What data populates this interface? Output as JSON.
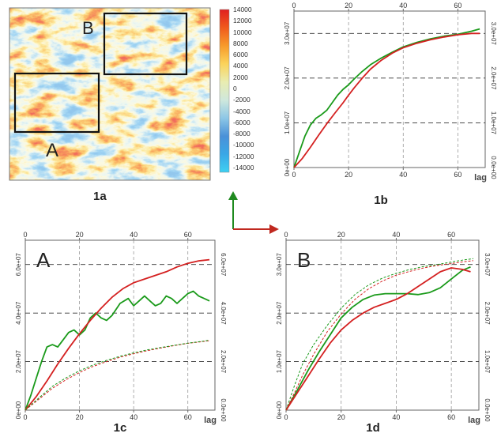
{
  "map": {
    "caption": "1a",
    "label_a": "A",
    "label_b": "B",
    "colorbar_ticks": [
      "14000",
      "12000",
      "10000",
      "8000",
      "6000",
      "4000",
      "2000",
      "0",
      "-2000",
      "-4000",
      "-6000",
      "-8000",
      "-10000",
      "-12000",
      "-14000"
    ],
    "colorbar_colors": [
      "#e02020",
      "#f05a1c",
      "#f79a2a",
      "#fbd35a",
      "#e9ecb0",
      "#cfe8dc",
      "#8dc7e6",
      "#4a91d8",
      "#39a7e6",
      "#3fd0f2"
    ]
  },
  "arrows": {
    "up_color": "#1f8a1f",
    "right_color": "#c0281f"
  },
  "chart_data": [
    {
      "id": "1b",
      "type": "line",
      "caption": "1b",
      "corner_label": "",
      "xlabel": "lag",
      "x_ticks": [
        "0",
        "20",
        "40",
        "60"
      ],
      "top_ticks": [
        "0",
        "20",
        "40",
        "60"
      ],
      "left_ticks": [
        "0e+00",
        "1.0e+07",
        "2.0e+07",
        "3.0e+07"
      ],
      "right_ticks": [
        "0.0e+00",
        "1.0e+07",
        "2.0e+07",
        "3.0e+07"
      ],
      "xlim": [
        0,
        70
      ],
      "ylim": [
        0,
        3.5
      ],
      "colors": {
        "green": "#1a9a1a",
        "red": "#d42020"
      },
      "series": [
        {
          "color": "green",
          "style": "solid",
          "x": [
            0,
            2,
            4,
            6,
            8,
            10,
            12,
            14,
            16,
            18,
            20,
            22,
            25,
            28,
            32,
            36,
            40,
            45,
            50,
            55,
            60,
            65,
            68
          ],
          "y": [
            0,
            0.35,
            0.7,
            0.95,
            1.1,
            1.18,
            1.28,
            1.45,
            1.62,
            1.75,
            1.85,
            1.98,
            2.15,
            2.3,
            2.45,
            2.58,
            2.7,
            2.8,
            2.88,
            2.94,
            2.98,
            3.05,
            3.1
          ]
        },
        {
          "color": "red",
          "style": "solid",
          "x": [
            0,
            3,
            6,
            9,
            12,
            15,
            18,
            20,
            22,
            25,
            28,
            32,
            36,
            40,
            45,
            50,
            55,
            60,
            65,
            68
          ],
          "y": [
            0,
            0.2,
            0.45,
            0.72,
            0.98,
            1.22,
            1.45,
            1.62,
            1.78,
            2.0,
            2.2,
            2.4,
            2.56,
            2.68,
            2.78,
            2.86,
            2.92,
            2.97,
            3.0,
            3.0
          ]
        }
      ]
    },
    {
      "id": "1c",
      "type": "line",
      "caption": "1c",
      "corner_label": "A",
      "xlabel": "lag",
      "x_ticks": [
        "0",
        "20",
        "40",
        "60"
      ],
      "top_ticks": [
        "0",
        "20",
        "40",
        "60"
      ],
      "left_ticks": [
        "0e+00",
        "2.0e+07",
        "4.0e+07",
        "6.0e+07"
      ],
      "right_ticks": [
        "0.0e+00",
        "2.0e+07",
        "4.0e+07",
        "6.0e+07"
      ],
      "xlim": [
        0,
        70
      ],
      "ylim": [
        0,
        7
      ],
      "colors": {
        "green": "#1a9a1a",
        "red": "#d42020"
      },
      "series": [
        {
          "color": "green",
          "style": "solid",
          "x": [
            0,
            2,
            4,
            6,
            8,
            10,
            12,
            14,
            16,
            18,
            20,
            22,
            24,
            26,
            28,
            30,
            32,
            35,
            38,
            40,
            42,
            44,
            46,
            48,
            50,
            52,
            54,
            56,
            58,
            60,
            62,
            64,
            66,
            68
          ],
          "y": [
            0,
            0.6,
            1.3,
            2.0,
            2.6,
            2.7,
            2.6,
            2.9,
            3.2,
            3.3,
            3.1,
            3.3,
            3.8,
            4.0,
            3.8,
            3.7,
            3.9,
            4.4,
            4.6,
            4.3,
            4.5,
            4.7,
            4.5,
            4.3,
            4.4,
            4.7,
            4.6,
            4.4,
            4.6,
            4.8,
            4.9,
            4.7,
            4.6,
            4.5
          ]
        },
        {
          "color": "red",
          "style": "solid",
          "x": [
            0,
            4,
            8,
            12,
            16,
            20,
            24,
            28,
            32,
            36,
            40,
            44,
            48,
            52,
            56,
            60,
            64,
            68
          ],
          "y": [
            0,
            0.55,
            1.2,
            1.9,
            2.55,
            3.15,
            3.7,
            4.2,
            4.65,
            5.0,
            5.25,
            5.4,
            5.55,
            5.7,
            5.9,
            6.05,
            6.15,
            6.2
          ]
        },
        {
          "color": "red",
          "style": "dashed",
          "x": [
            0,
            5,
            10,
            15,
            20,
            25,
            30,
            35,
            40,
            45,
            50,
            55,
            60,
            65,
            68
          ],
          "y": [
            0,
            0.45,
            0.9,
            1.25,
            1.55,
            1.8,
            2.0,
            2.18,
            2.32,
            2.45,
            2.56,
            2.66,
            2.75,
            2.82,
            2.86
          ]
        },
        {
          "color": "green",
          "style": "dashed",
          "x": [
            0,
            5,
            10,
            15,
            20,
            25,
            30,
            35,
            40,
            45,
            50,
            55,
            60,
            65,
            68
          ],
          "y": [
            0,
            0.5,
            0.98,
            1.33,
            1.62,
            1.86,
            2.05,
            2.22,
            2.36,
            2.48,
            2.58,
            2.67,
            2.76,
            2.83,
            2.88
          ]
        }
      ]
    },
    {
      "id": "1d",
      "type": "line",
      "caption": "1d",
      "corner_label": "B",
      "xlabel": "lag",
      "x_ticks": [
        "0",
        "20",
        "40",
        "60"
      ],
      "top_ticks": [
        "0",
        "20",
        "40",
        "60"
      ],
      "left_ticks": [
        "0e+00",
        "1.0e+07",
        "2.0e+07",
        "3.0e+07"
      ],
      "right_ticks": [
        "0.0e+00",
        "1.0e+07",
        "2.0e+07",
        "3.0e+07"
      ],
      "xlim": [
        0,
        70
      ],
      "ylim": [
        0,
        3.5
      ],
      "colors": {
        "green": "#1a9a1a",
        "red": "#d42020"
      },
      "series": [
        {
          "color": "green",
          "style": "solid",
          "x": [
            0,
            4,
            8,
            12,
            16,
            20,
            24,
            28,
            32,
            36,
            40,
            44,
            48,
            52,
            56,
            60,
            64,
            67
          ],
          "y": [
            0,
            0.4,
            0.82,
            1.2,
            1.55,
            1.9,
            2.12,
            2.28,
            2.37,
            2.4,
            2.4,
            2.4,
            2.38,
            2.42,
            2.52,
            2.7,
            2.88,
            2.95
          ]
        },
        {
          "color": "red",
          "style": "solid",
          "x": [
            0,
            4,
            8,
            12,
            16,
            20,
            24,
            28,
            32,
            36,
            40,
            44,
            48,
            52,
            56,
            60,
            64,
            67
          ],
          "y": [
            0,
            0.35,
            0.7,
            1.05,
            1.38,
            1.65,
            1.85,
            2.0,
            2.12,
            2.2,
            2.28,
            2.4,
            2.55,
            2.7,
            2.85,
            2.93,
            2.9,
            2.85
          ]
        },
        {
          "color": "green",
          "style": "dashed",
          "x": [
            0,
            3,
            6,
            10,
            15,
            20,
            25,
            30,
            35,
            40,
            45,
            50,
            55,
            60,
            65,
            68
          ],
          "y": [
            0,
            0.5,
            0.95,
            1.35,
            1.75,
            2.1,
            2.38,
            2.58,
            2.72,
            2.82,
            2.9,
            2.96,
            3.0,
            3.05,
            3.1,
            3.12
          ]
        },
        {
          "color": "red",
          "style": "dashed",
          "x": [
            0,
            3,
            6,
            10,
            15,
            20,
            25,
            30,
            35,
            40,
            45,
            50,
            55,
            60,
            65,
            68
          ],
          "y": [
            0,
            0.35,
            0.72,
            1.15,
            1.62,
            1.98,
            2.28,
            2.5,
            2.66,
            2.78,
            2.86,
            2.93,
            2.98,
            3.02,
            3.06,
            3.08
          ]
        }
      ]
    }
  ]
}
